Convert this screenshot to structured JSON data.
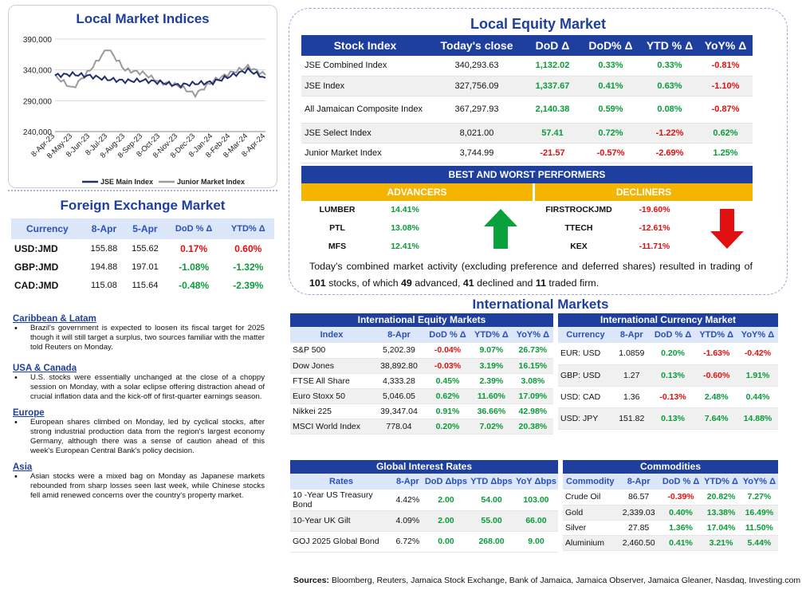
{
  "indices_chart": {
    "title": "Local Market Indices",
    "y_ticks": [
      "390,000",
      "340,000",
      "290,000",
      "240,000"
    ],
    "x_ticks": [
      "8-Apr-23",
      "8-May-23",
      "8-Jun-23",
      "8-Jul-23",
      "8-Aug-23",
      "8-Sep-23",
      "8-Oct-23",
      "8-Nov-23",
      "8-Dec-23",
      "8-Jan-24",
      "8-Feb-24",
      "8-Mar-24",
      "8-Apr-24"
    ],
    "legend": [
      "JSE Main Index",
      "Junior Market Index"
    ],
    "colors": {
      "main": "#1f2f6f",
      "junior": "#9a9a9a"
    }
  },
  "chart_data": {
    "type": "line",
    "title": "Local Market Indices",
    "xlabel": "",
    "ylabel": "",
    "ylim": [
      240000,
      390000
    ],
    "x": [
      "8-Apr-23",
      "8-May-23",
      "8-Jun-23",
      "8-Jul-23",
      "8-Aug-23",
      "8-Sep-23",
      "8-Oct-23",
      "8-Nov-23",
      "8-Dec-23",
      "8-Jan-24",
      "8-Feb-24",
      "8-Mar-24",
      "8-Apr-24"
    ],
    "series": [
      {
        "name": "JSE Main Index",
        "values": [
          331000,
          333000,
          330000,
          325000,
          322000,
          323000,
          320000,
          315000,
          318000,
          320000,
          330000,
          340000,
          327000
        ]
      },
      {
        "name": "Junior Market Index",
        "values": [
          330000,
          310000,
          340000,
          375000,
          340000,
          335000,
          320000,
          315000,
          300000,
          322000,
          335000,
          345000,
          332000
        ]
      }
    ]
  },
  "fx": {
    "title": "Foreign Exchange Market",
    "headers": [
      "Currency",
      "8-Apr",
      "5-Apr",
      "DoD % Δ",
      "YTD% Δ"
    ],
    "rows": [
      {
        "cur": "USD:JMD",
        "a": "155.88",
        "b": "155.62",
        "dod": "0.17%",
        "ytd": "0.60%",
        "dod_sign": "neg",
        "ytd_sign": "neg"
      },
      {
        "cur": "GBP:JMD",
        "a": "194.88",
        "b": "197.01",
        "dod": "-1.08%",
        "ytd": "-1.32%",
        "dod_sign": "pos",
        "ytd_sign": "pos"
      },
      {
        "cur": "CAD:JMD",
        "a": "115.08",
        "b": "115.64",
        "dod": "-0.48%",
        "ytd": "-2.39%",
        "dod_sign": "pos",
        "ytd_sign": "pos"
      }
    ]
  },
  "news": [
    {
      "heading": "Caribbean & Latam",
      "text": "Brazil's government is expected to loosen its fiscal target for 2025 though it will still target a surplus, two sources familiar with the matter told Reuters on Monday."
    },
    {
      "heading": "USA & Canada",
      "text": "U.S. stocks were essentially unchanged at the close of a choppy session on Monday, with a solar eclipse offering distraction ahead of crucial inflation data and the kick-off of first-quarter earnings season."
    },
    {
      "heading": "Europe",
      "text": "European shares climbed on Monday, led by cyclical stocks, after strong industrial production data from the region's largest economy Germany, although there was a sense of caution ahead of this week's European Central Bank's policy decision."
    },
    {
      "heading": "Asia",
      "text": "Asian stocks were a mixed bag on Monday as Japanese markets rebounded from sharp losses seen last week, while Chinese stocks fell amid renewed concerns over the country's property market."
    }
  ],
  "equity": {
    "title": "Local Equity Market",
    "headers": [
      "Stock Index",
      "Today's close",
      "DoD  Δ",
      "DoD% Δ",
      "YTD % Δ",
      "YoY% Δ"
    ],
    "rows": [
      {
        "name": "JSE Combined Index",
        "close": "340,293.63",
        "dod": "1,132.02",
        "dodp": "0.33%",
        "ytd": "0.33%",
        "yoy": "-0.81%",
        "s": [
          "pos",
          "pos",
          "pos",
          "neg"
        ]
      },
      {
        "name": "JSE Index",
        "close": "327,756.09",
        "dod": "1,337.67",
        "dodp": "0.41%",
        "ytd": "0.63%",
        "yoy": "-1.10%",
        "s": [
          "pos",
          "pos",
          "pos",
          "neg"
        ]
      },
      {
        "name": "All Jamaican Composite Index",
        "close": "367,297.93",
        "dod": "2,140.38",
        "dodp": "0.59%",
        "ytd": "0.08%",
        "yoy": "-0.87%",
        "s": [
          "pos",
          "pos",
          "pos",
          "neg"
        ]
      },
      {
        "name": "JSE Select Index",
        "close": "8,021.00",
        "dod": "57.41",
        "dodp": "0.72%",
        "ytd": "-1.22%",
        "yoy": "0.62%",
        "s": [
          "pos",
          "pos",
          "neg",
          "pos"
        ]
      },
      {
        "name": "Junior Market Index",
        "close": "3,744.99",
        "dod": "-21.57",
        "dodp": "-0.57%",
        "ytd": "-2.69%",
        "yoy": "1.25%",
        "s": [
          "neg",
          "neg",
          "neg",
          "pos"
        ]
      }
    ],
    "best_worst_title": "BEST AND WORST PERFORMERS",
    "advancers_label": "ADVANCERS",
    "decliners_label": "DECLINERS",
    "advancers": [
      {
        "name": "LUMBER",
        "pct": "14.41%"
      },
      {
        "name": "PTL",
        "pct": "13.08%"
      },
      {
        "name": "MFS",
        "pct": "12.41%"
      }
    ],
    "decliners": [
      {
        "name": "FIRSTROCKJMD",
        "pct": "-19.60%"
      },
      {
        "name": "TTECH",
        "pct": "-12.61%"
      },
      {
        "name": "KEX",
        "pct": "-11.71%"
      }
    ],
    "summary_pre": "Today's combined market activity (excluding preference and deferred shares) resulted in trading of ",
    "summary_total": "101",
    "summary_mid1": " stocks, of which ",
    "summary_adv": "49",
    "summary_mid2": " advanced, ",
    "summary_dec": "41",
    "summary_mid3": " declined and ",
    "summary_firm": "11",
    "summary_end": " traded firm."
  },
  "intl_title": "International Markets",
  "intl_equity": {
    "title": "International Equity Markets",
    "headers": [
      "Index",
      "8-Apr",
      "DoD % Δ",
      "YTD% Δ",
      "YoY% Δ"
    ],
    "rows": [
      {
        "name": "S&P 500",
        "v": "5,202.39",
        "dod": "-0.04%",
        "ytd": "9.07%",
        "yoy": "26.73%",
        "s": [
          "neg",
          "pos",
          "pos"
        ]
      },
      {
        "name": "Dow Jones",
        "v": "38,892.80",
        "dod": "-0.03%",
        "ytd": "3.19%",
        "yoy": "16.15%",
        "s": [
          "neg",
          "pos",
          "pos"
        ]
      },
      {
        "name": "FTSE All Share",
        "v": "4,333.28",
        "dod": "0.45%",
        "ytd": "2.39%",
        "yoy": "3.08%",
        "s": [
          "pos",
          "pos",
          "pos"
        ]
      },
      {
        "name": "Euro Stoxx 50",
        "v": "5,046.05",
        "dod": "0.62%",
        "ytd": "11.60%",
        "yoy": "17.09%",
        "s": [
          "pos",
          "pos",
          "pos"
        ]
      },
      {
        "name": "Nikkei 225",
        "v": "39,347.04",
        "dod": "0.91%",
        "ytd": "36.66%",
        "yoy": "42.98%",
        "s": [
          "pos",
          "pos",
          "pos"
        ]
      },
      {
        "name": "MSCI World Index",
        "v": "778.04",
        "dod": "0.20%",
        "ytd": "7.02%",
        "yoy": "20.38%",
        "s": [
          "pos",
          "pos",
          "pos"
        ]
      }
    ]
  },
  "intl_currency": {
    "title": "International Currency Market",
    "headers": [
      "Currency",
      "8-Apr",
      "DoD % Δ",
      "YTD% Δ",
      "YoY% Δ"
    ],
    "rows": [
      {
        "name": "EUR: USD",
        "v": "1.0859",
        "dod": "0.20%",
        "ytd": "-1.63%",
        "yoy": "-0.42%",
        "s": [
          "pos",
          "neg",
          "neg"
        ]
      },
      {
        "name": "GBP: USD",
        "v": "1.27",
        "dod": "0.13%",
        "ytd": "-0.60%",
        "yoy": "1.91%",
        "s": [
          "pos",
          "neg",
          "pos"
        ]
      },
      {
        "name": "USD: CAD",
        "v": "1.36",
        "dod": "-0.13%",
        "ytd": "2.48%",
        "yoy": "0.44%",
        "s": [
          "neg",
          "pos",
          "pos"
        ]
      },
      {
        "name": "USD: JPY",
        "v": "151.82",
        "dod": "0.13%",
        "ytd": "7.64%",
        "yoy": "14.88%",
        "s": [
          "pos",
          "pos",
          "pos"
        ]
      }
    ]
  },
  "rates": {
    "title": "Global Interest Rates",
    "headers": [
      "Rates",
      "8-Apr",
      "DoD Δbps",
      "YTD Δbps",
      "YoY Δbps"
    ],
    "rows": [
      {
        "name": "10 -Year US Treasury Bond",
        "v": "4.42%",
        "dod": "2.00",
        "ytd": "54.00",
        "yoy": "103.00"
      },
      {
        "name": "10-Year UK Gilt",
        "v": "4.09%",
        "dod": "2.00",
        "ytd": "55.00",
        "yoy": "66.00"
      },
      {
        "name": "GOJ 2025 Global Bond",
        "v": "6.72%",
        "dod": "0.00",
        "ytd": "268.00",
        "yoy": "9.00"
      }
    ]
  },
  "commodities": {
    "title": "Commodities",
    "headers": [
      "Commodity",
      "8-Apr",
      "DoD % Δ",
      "YTD% Δ",
      "YoY% Δ"
    ],
    "rows": [
      {
        "name": "Crude Oil",
        "v": "86.57",
        "dod": "-0.39%",
        "ytd": "20.82%",
        "yoy": "7.27%",
        "s": [
          "neg",
          "pos",
          "pos"
        ]
      },
      {
        "name": "Gold",
        "v": "2,339.03",
        "dod": "0.40%",
        "ytd": "13.38%",
        "yoy": "16.49%",
        "s": [
          "pos",
          "pos",
          "pos"
        ]
      },
      {
        "name": "Silver",
        "v": "27.85",
        "dod": "1.36%",
        "ytd": "17.04%",
        "yoy": "11.50%",
        "s": [
          "pos",
          "pos",
          "pos"
        ]
      },
      {
        "name": "Aluminium",
        "v": "2,460.50",
        "dod": "0.41%",
        "ytd": "3.21%",
        "yoy": "5.44%",
        "s": [
          "pos",
          "pos",
          "pos"
        ]
      }
    ]
  },
  "sources": {
    "label": "Sources:",
    "text": " Bloomberg, Reuters, Jamaica Stock Exchange, Bank of Jamaica, Jamaica Observer, Jamaica Gleaner, Nasdaq, Investing.com"
  }
}
